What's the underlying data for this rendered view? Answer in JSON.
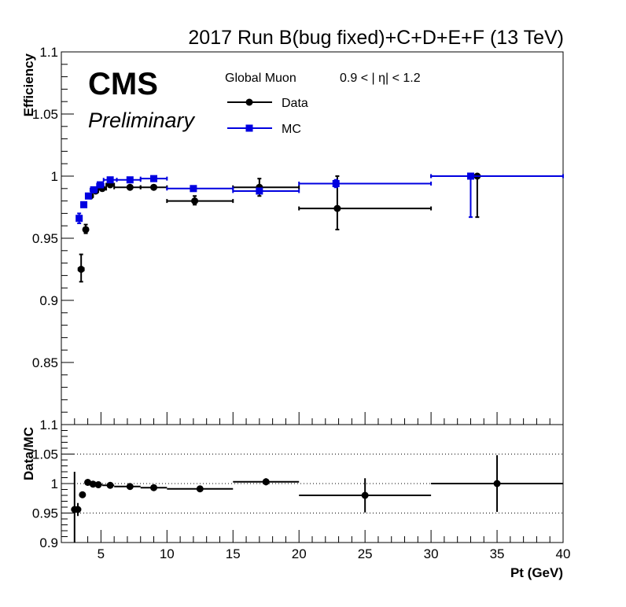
{
  "title": "2017 Run B(bug fixed)+C+D+E+F (13 TeV)",
  "cms_label": "CMS",
  "preliminary_label": "Preliminary",
  "legend": {
    "header": "Global Muon",
    "eta_range": "0.9 < |  η| < 1.2",
    "entries": [
      {
        "label": "Data",
        "color": "#000000",
        "marker": "circle"
      },
      {
        "label": "MC",
        "color": "#0000e0",
        "marker": "square"
      }
    ]
  },
  "chart_data": [
    {
      "type": "scatter",
      "panel": "efficiency",
      "ylabel": "Efficiency",
      "ylim": [
        0.8,
        1.1
      ],
      "xlim": [
        2,
        40
      ],
      "yticks": [
        "1.1",
        "1.05",
        "1",
        "0.95",
        "0.9",
        "0.85"
      ],
      "series": [
        {
          "name": "Data",
          "color": "#000000",
          "points": [
            {
              "x": 3.5,
              "y": 0.925,
              "xlo": 3.3,
              "xhi": 3.7,
              "ylo": 0.915,
              "yhi": 0.937
            },
            {
              "x": 3.85,
              "y": 0.957,
              "xlo": 3.7,
              "xhi": 4.0,
              "ylo": 0.954,
              "yhi": 0.961
            },
            {
              "x": 4.2,
              "y": 0.984,
              "xlo": 4.0,
              "xhi": 4.4,
              "ylo": 0.982,
              "yhi": 0.986
            },
            {
              "x": 4.6,
              "y": 0.988,
              "xlo": 4.4,
              "xhi": 4.8,
              "ylo": 0.987,
              "yhi": 0.989
            },
            {
              "x": 5.1,
              "y": 0.99,
              "xlo": 4.8,
              "xhi": 5.4,
              "ylo": 0.989,
              "yhi": 0.991
            },
            {
              "x": 5.7,
              "y": 0.993,
              "xlo": 5.4,
              "xhi": 6.0,
              "ylo": 0.992,
              "yhi": 0.994
            },
            {
              "x": 7.2,
              "y": 0.991,
              "xlo": 6.0,
              "xhi": 8.0,
              "ylo": 0.99,
              "yhi": 0.992
            },
            {
              "x": 9.0,
              "y": 0.991,
              "xlo": 8.0,
              "xhi": 10.0,
              "ylo": 0.99,
              "yhi": 0.992
            },
            {
              "x": 12.1,
              "y": 0.98,
              "xlo": 10.0,
              "xhi": 15.0,
              "ylo": 0.977,
              "yhi": 0.984
            },
            {
              "x": 17.0,
              "y": 0.991,
              "xlo": 15.0,
              "xhi": 20.0,
              "ylo": 0.984,
              "yhi": 0.998
            },
            {
              "x": 22.9,
              "y": 0.974,
              "xlo": 20.0,
              "xhi": 30.0,
              "ylo": 0.957,
              "yhi": 1.0
            },
            {
              "x": 33.5,
              "y": 1.0,
              "xlo": 30.0,
              "xhi": 40.0,
              "ylo": 0.967,
              "yhi": 1.0
            }
          ]
        },
        {
          "name": "MC",
          "color": "#0000e0",
          "points": [
            {
              "x": 3.35,
              "y": 0.966,
              "xlo": 3.2,
              "xhi": 3.5,
              "ylo": 0.962,
              "yhi": 0.97
            },
            {
              "x": 3.7,
              "y": 0.977,
              "xlo": 3.5,
              "xhi": 3.9,
              "ylo": 0.975,
              "yhi": 0.979
            },
            {
              "x": 4.05,
              "y": 0.984,
              "xlo": 3.9,
              "xhi": 4.2,
              "ylo": 0.983,
              "yhi": 0.985
            },
            {
              "x": 4.45,
              "y": 0.989,
              "xlo": 4.2,
              "xhi": 4.7,
              "ylo": 0.988,
              "yhi": 0.99
            },
            {
              "x": 4.95,
              "y": 0.993,
              "xlo": 4.7,
              "xhi": 5.2,
              "ylo": 0.992,
              "yhi": 0.994
            },
            {
              "x": 5.7,
              "y": 0.997,
              "xlo": 5.2,
              "xhi": 6.2,
              "ylo": 0.996,
              "yhi": 0.998
            },
            {
              "x": 7.2,
              "y": 0.997,
              "xlo": 6.2,
              "xhi": 8.0,
              "ylo": 0.996,
              "yhi": 0.998
            },
            {
              "x": 9.0,
              "y": 0.998,
              "xlo": 8.0,
              "xhi": 10.0,
              "ylo": 0.997,
              "yhi": 0.999
            },
            {
              "x": 12.0,
              "y": 0.99,
              "xlo": 10.0,
              "xhi": 15.0,
              "ylo": 0.989,
              "yhi": 0.991
            },
            {
              "x": 17.0,
              "y": 0.988,
              "xlo": 15.0,
              "xhi": 20.0,
              "ylo": 0.986,
              "yhi": 0.99
            },
            {
              "x": 22.8,
              "y": 0.994,
              "xlo": 20.0,
              "xhi": 30.0,
              "ylo": 0.991,
              "yhi": 0.997
            },
            {
              "x": 33.0,
              "y": 1.0,
              "xlo": 30.0,
              "xhi": 40.0,
              "ylo": 0.967,
              "yhi": 1.0
            }
          ]
        }
      ]
    },
    {
      "type": "scatter",
      "panel": "ratio",
      "xlabel": "Pt (GeV)",
      "ylabel": "Data/MC",
      "ylim": [
        0.9,
        1.1
      ],
      "xlim": [
        2,
        40
      ],
      "yticks": [
        "1.1",
        "1.05",
        "1",
        "0.95",
        "0.9"
      ],
      "xticks": [
        "5",
        "10",
        "15",
        "20",
        "25",
        "30",
        "35",
        "40"
      ],
      "grid_lines_y": [
        1.05,
        1.0,
        0.95
      ],
      "series": [
        {
          "name": "Data/MC",
          "color": "#000000",
          "points": [
            {
              "x": 3.0,
              "y": 0.956,
              "xlo": 2.8,
              "xhi": 3.2,
              "ylo": 0.9,
              "yhi": 1.02
            },
            {
              "x": 3.25,
              "y": 0.956,
              "xlo": 3.1,
              "xhi": 3.4,
              "ylo": 0.945,
              "yhi": 0.967
            },
            {
              "x": 3.6,
              "y": 0.981,
              "xlo": 3.45,
              "xhi": 3.75,
              "ylo": 0.978,
              "yhi": 0.984
            },
            {
              "x": 4.0,
              "y": 1.002,
              "xlo": 3.8,
              "xhi": 4.2,
              "ylo": 1.0,
              "yhi": 1.004
            },
            {
              "x": 4.4,
              "y": 0.999,
              "xlo": 4.2,
              "xhi": 4.6,
              "ylo": 0.998,
              "yhi": 1.0
            },
            {
              "x": 4.8,
              "y": 0.998,
              "xlo": 4.6,
              "xhi": 5.1,
              "ylo": 0.997,
              "yhi": 0.999
            },
            {
              "x": 5.7,
              "y": 0.997,
              "xlo": 5.1,
              "xhi": 6.0,
              "ylo": 0.996,
              "yhi": 0.998
            },
            {
              "x": 7.2,
              "y": 0.995,
              "xlo": 6.0,
              "xhi": 8.0,
              "ylo": 0.994,
              "yhi": 0.996
            },
            {
              "x": 9.0,
              "y": 0.993,
              "xlo": 8.0,
              "xhi": 10.0,
              "ylo": 0.992,
              "yhi": 0.994
            },
            {
              "x": 12.5,
              "y": 0.991,
              "xlo": 10.0,
              "xhi": 15.0,
              "ylo": 0.988,
              "yhi": 0.994
            },
            {
              "x": 17.5,
              "y": 1.003,
              "xlo": 15.0,
              "xhi": 20.0,
              "ylo": 0.997,
              "yhi": 1.009
            },
            {
              "x": 25.0,
              "y": 0.98,
              "xlo": 20.0,
              "xhi": 30.0,
              "ylo": 0.951,
              "yhi": 1.009
            },
            {
              "x": 35.0,
              "y": 1.0,
              "xlo": 30.0,
              "xhi": 40.0,
              "ylo": 0.952,
              "yhi": 1.048
            }
          ]
        }
      ]
    }
  ]
}
